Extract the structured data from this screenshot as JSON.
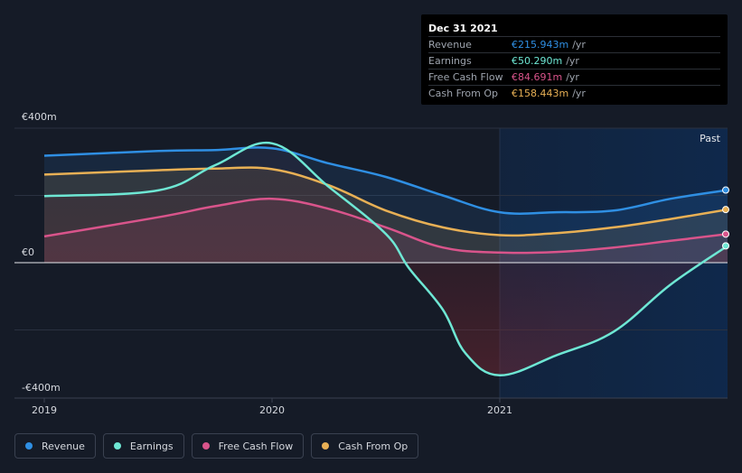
{
  "tooltip": {
    "date": "Dec 31 2021",
    "rows": [
      {
        "label": "Revenue",
        "value": "€215.943m",
        "unit": "/yr",
        "color": "#2f8fe3"
      },
      {
        "label": "Earnings",
        "value": "€50.290m",
        "unit": "/yr",
        "color": "#6ee7d4"
      },
      {
        "label": "Free Cash Flow",
        "value": "€84.691m",
        "unit": "/yr",
        "color": "#d9548b"
      },
      {
        "label": "Cash From Op",
        "value": "€158.443m",
        "unit": "/yr",
        "color": "#e8b055"
      }
    ]
  },
  "past_label": "Past",
  "colors": {
    "background": "#151b27",
    "revenue": "#2f8fe3",
    "earnings": "#6ee7d4",
    "free_cash_flow": "#d9548b",
    "cash_from_op": "#e8b055"
  },
  "chart_data": {
    "type": "line",
    "y_tick_labels": [
      "€400m",
      "€0",
      "-€400m"
    ],
    "y_ticks": [
      400,
      0,
      -400
    ],
    "x_tick_labels": [
      "2019",
      "2020",
      "2021"
    ],
    "x_ticks": [
      2019.0,
      2020.0,
      2021.0
    ],
    "xlim": [
      2018.9,
      2022.0
    ],
    "ylim": [
      -400,
      400
    ],
    "grid": true,
    "past_region_start": 2021.0,
    "series": [
      {
        "name": "Revenue",
        "color": "#2f8fe3",
        "x": [
          2019.0,
          2019.5,
          2019.75,
          2020.0,
          2020.25,
          2020.5,
          2020.75,
          2021.0,
          2021.25,
          2021.5,
          2021.75,
          2022.0
        ],
        "values": [
          318,
          332,
          335,
          340,
          295,
          255,
          200,
          150,
          150,
          155,
          190,
          216
        ]
      },
      {
        "name": "Earnings",
        "color": "#6ee7d4",
        "x": [
          2019.0,
          2019.5,
          2019.75,
          2020.0,
          2020.25,
          2020.5,
          2020.6,
          2020.75,
          2020.85,
          2021.0,
          2021.25,
          2021.5,
          2021.75,
          2022.0
        ],
        "values": [
          198,
          215,
          290,
          355,
          225,
          85,
          -15,
          -140,
          -270,
          -335,
          -275,
          -205,
          -65,
          50
        ]
      },
      {
        "name": "Free Cash Flow",
        "color": "#d9548b",
        "x": [
          2019.0,
          2019.5,
          2019.75,
          2020.0,
          2020.25,
          2020.5,
          2020.75,
          2021.0,
          2021.25,
          2021.5,
          2021.75,
          2022.0
        ],
        "values": [
          78,
          135,
          168,
          190,
          160,
          105,
          45,
          30,
          32,
          45,
          65,
          85
        ]
      },
      {
        "name": "Cash From Op",
        "color": "#e8b055",
        "x": [
          2019.0,
          2019.5,
          2019.75,
          2020.0,
          2020.25,
          2020.5,
          2020.75,
          2021.0,
          2021.25,
          2021.5,
          2021.75,
          2022.0
        ],
        "values": [
          262,
          275,
          280,
          278,
          230,
          155,
          105,
          82,
          88,
          105,
          130,
          158
        ]
      }
    ]
  },
  "legend": [
    {
      "label": "Revenue",
      "color": "#2f8fe3"
    },
    {
      "label": "Earnings",
      "color": "#6ee7d4"
    },
    {
      "label": "Free Cash Flow",
      "color": "#d9548b"
    },
    {
      "label": "Cash From Op",
      "color": "#e8b055"
    }
  ]
}
